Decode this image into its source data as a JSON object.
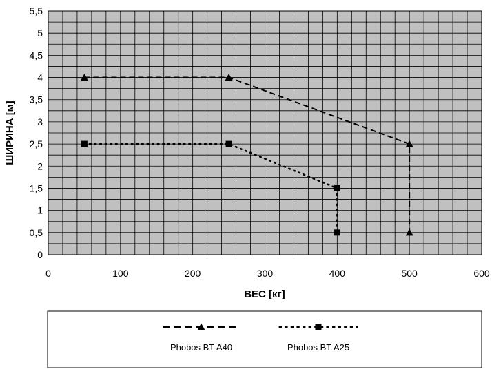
{
  "chart_data": {
    "type": "line",
    "xlabel": "ВЕС [кг]",
    "ylabel": "ШИРИНА  [м]",
    "xlim": [
      0,
      600
    ],
    "ylim": [
      0,
      5.5
    ],
    "grid": true,
    "legend_position": "bottom",
    "x_ticks": [
      "0",
      "100",
      "200",
      "300",
      "400",
      "500",
      "600"
    ],
    "y_ticks": [
      "0",
      "0,5",
      "1",
      "1,5",
      "2",
      "2,5",
      "3",
      "3,5",
      "4",
      "4,5",
      "5",
      "5,5"
    ],
    "series": [
      {
        "name": "Phobos BT A40",
        "marker": "triangle",
        "line_style": "dashed",
        "points": [
          {
            "x": 50,
            "y": 4
          },
          {
            "x": 250,
            "y": 4
          },
          {
            "x": 500,
            "y": 2.5
          },
          {
            "x": 500,
            "y": 0.5
          }
        ]
      },
      {
        "name": "Phobos BT A25",
        "marker": "square",
        "line_style": "dotted",
        "points": [
          {
            "x": 50,
            "y": 2.5
          },
          {
            "x": 250,
            "y": 2.5
          },
          {
            "x": 400,
            "y": 1.5
          },
          {
            "x": 400,
            "y": 0.5
          }
        ]
      }
    ]
  },
  "colors": {
    "plot_background": "#c0c0c0",
    "grid": "#000000",
    "series": "#000000"
  }
}
